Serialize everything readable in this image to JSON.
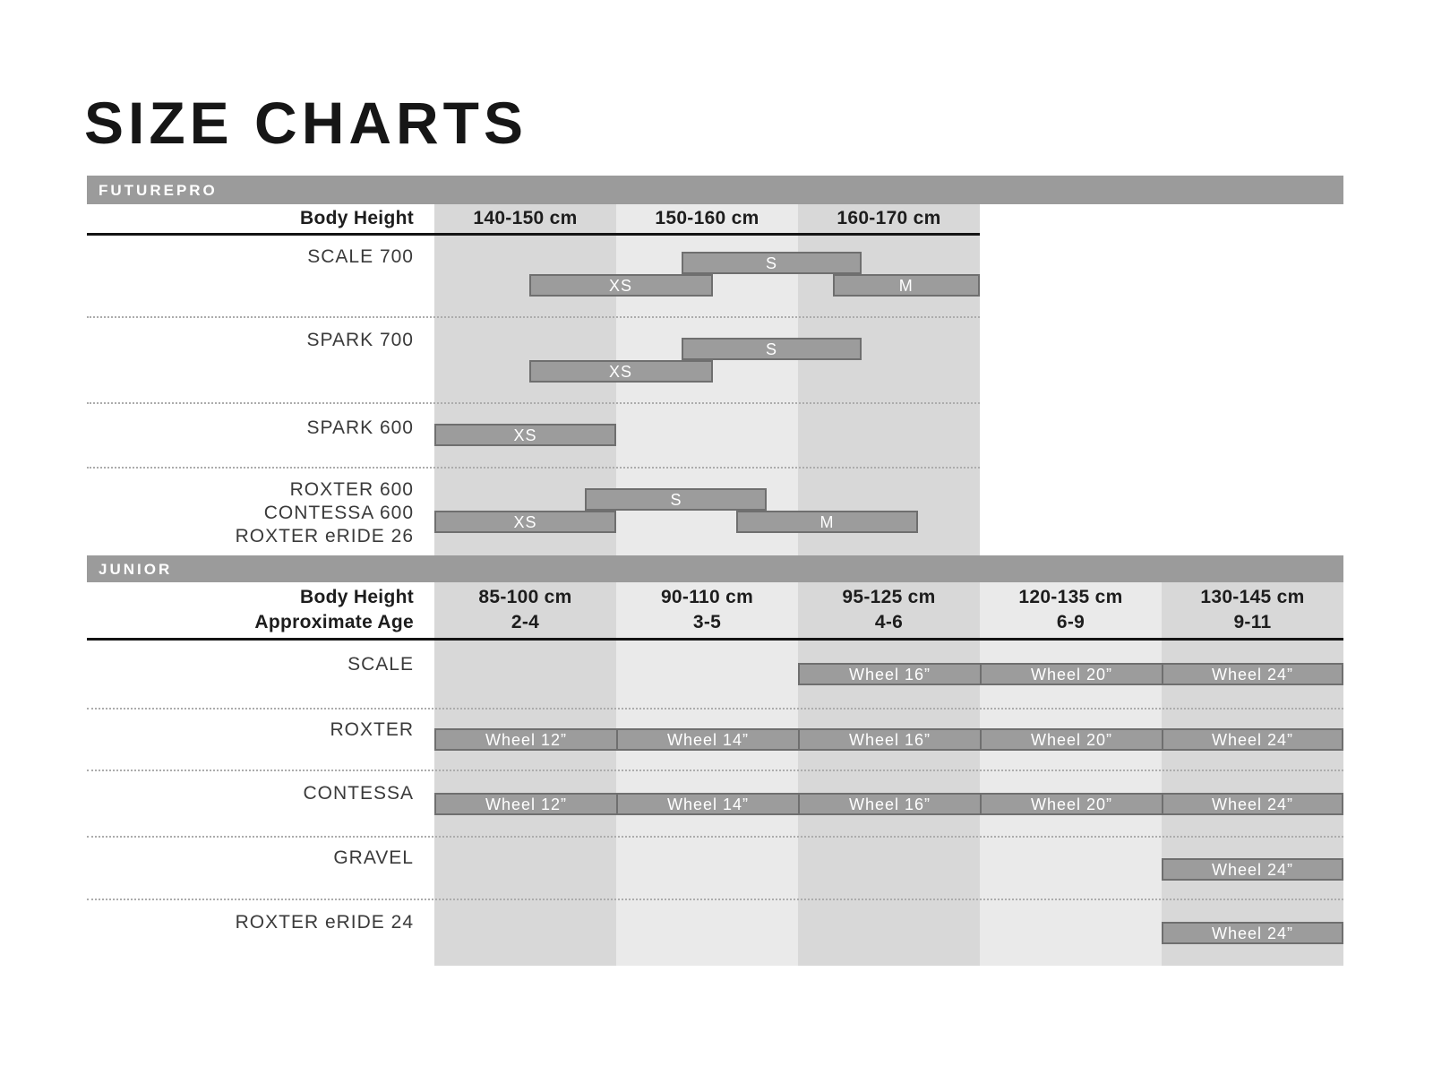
{
  "title": "SIZE CHARTS",
  "colors": {
    "section_bar": "#9b9b9b",
    "bar_fill": "#9c9c9c",
    "bar_border": "#6f6f6f",
    "band_dark": "#d8d8d8",
    "band_light": "#eaeaea",
    "header_text": "#1d1d1d",
    "bar_text": "#ffffff"
  },
  "chart_data": [
    {
      "type": "table",
      "section": "FUTUREPRO",
      "axis_label": "Body Height",
      "columns": [
        "140-150 cm",
        "150-160 cm",
        "160-170 cm"
      ],
      "cm_range": [
        140,
        170
      ],
      "rows": [
        {
          "models": [
            "SCALE 700"
          ],
          "bars": [
            {
              "label": "S",
              "from_cm": 153.6,
              "to_cm": 163.5,
              "track": 0
            },
            {
              "label": "XS",
              "from_cm": 145.2,
              "to_cm": 155.3,
              "track": 1
            },
            {
              "label": "M",
              "from_cm": 161.9,
              "to_cm": 170,
              "track": 1
            }
          ]
        },
        {
          "models": [
            "SPARK 700"
          ],
          "bars": [
            {
              "label": "S",
              "from_cm": 153.6,
              "to_cm": 163.5,
              "track": 0
            },
            {
              "label": "XS",
              "from_cm": 145.2,
              "to_cm": 155.3,
              "track": 1
            }
          ]
        },
        {
          "models": [
            "SPARK 600"
          ],
          "bars": [
            {
              "label": "XS",
              "from_cm": 140,
              "to_cm": 150,
              "track": 0
            }
          ]
        },
        {
          "models": [
            "ROXTER 600",
            "CONTESSA 600",
            "ROXTER eRIDE 26"
          ],
          "bars": [
            {
              "label": "S",
              "from_cm": 148.3,
              "to_cm": 158.3,
              "track": 0
            },
            {
              "label": "XS",
              "from_cm": 140,
              "to_cm": 150,
              "track": 1
            },
            {
              "label": "M",
              "from_cm": 156.6,
              "to_cm": 166.6,
              "track": 1
            }
          ]
        }
      ]
    },
    {
      "type": "table",
      "section": "JUNIOR",
      "axis_labels": [
        "Body Height",
        "Approximate Age"
      ],
      "columns": [
        {
          "height": "85-100 cm",
          "age": "2-4"
        },
        {
          "height": "90-110 cm",
          "age": "3-5"
        },
        {
          "height": "95-125 cm",
          "age": "4-6"
        },
        {
          "height": "120-135 cm",
          "age": "6-9"
        },
        {
          "height": "130-145 cm",
          "age": "9-11"
        }
      ],
      "rows": [
        {
          "models": [
            "SCALE"
          ],
          "cells": [
            {
              "label": "Wheel 16”",
              "col": 2
            },
            {
              "label": "Wheel 20”",
              "col": 3
            },
            {
              "label": "Wheel 24”",
              "col": 4
            }
          ]
        },
        {
          "models": [
            "ROXTER"
          ],
          "cells": [
            {
              "label": "Wheel 12”",
              "col": 0
            },
            {
              "label": "Wheel 14”",
              "col": 1
            },
            {
              "label": "Wheel 16”",
              "col": 2
            },
            {
              "label": "Wheel 20”",
              "col": 3
            },
            {
              "label": "Wheel 24”",
              "col": 4
            }
          ]
        },
        {
          "models": [
            "CONTESSA"
          ],
          "cells": [
            {
              "label": "Wheel 12”",
              "col": 0
            },
            {
              "label": "Wheel 14”",
              "col": 1
            },
            {
              "label": "Wheel 16”",
              "col": 2
            },
            {
              "label": "Wheel 20”",
              "col": 3
            },
            {
              "label": "Wheel 24”",
              "col": 4
            }
          ]
        },
        {
          "models": [
            "GRAVEL"
          ],
          "cells": [
            {
              "label": "Wheel 24”",
              "col": 4
            }
          ]
        },
        {
          "models": [
            "ROXTER eRIDE 24"
          ],
          "cells": [
            {
              "label": "Wheel 24”",
              "col": 4
            }
          ]
        }
      ]
    }
  ]
}
